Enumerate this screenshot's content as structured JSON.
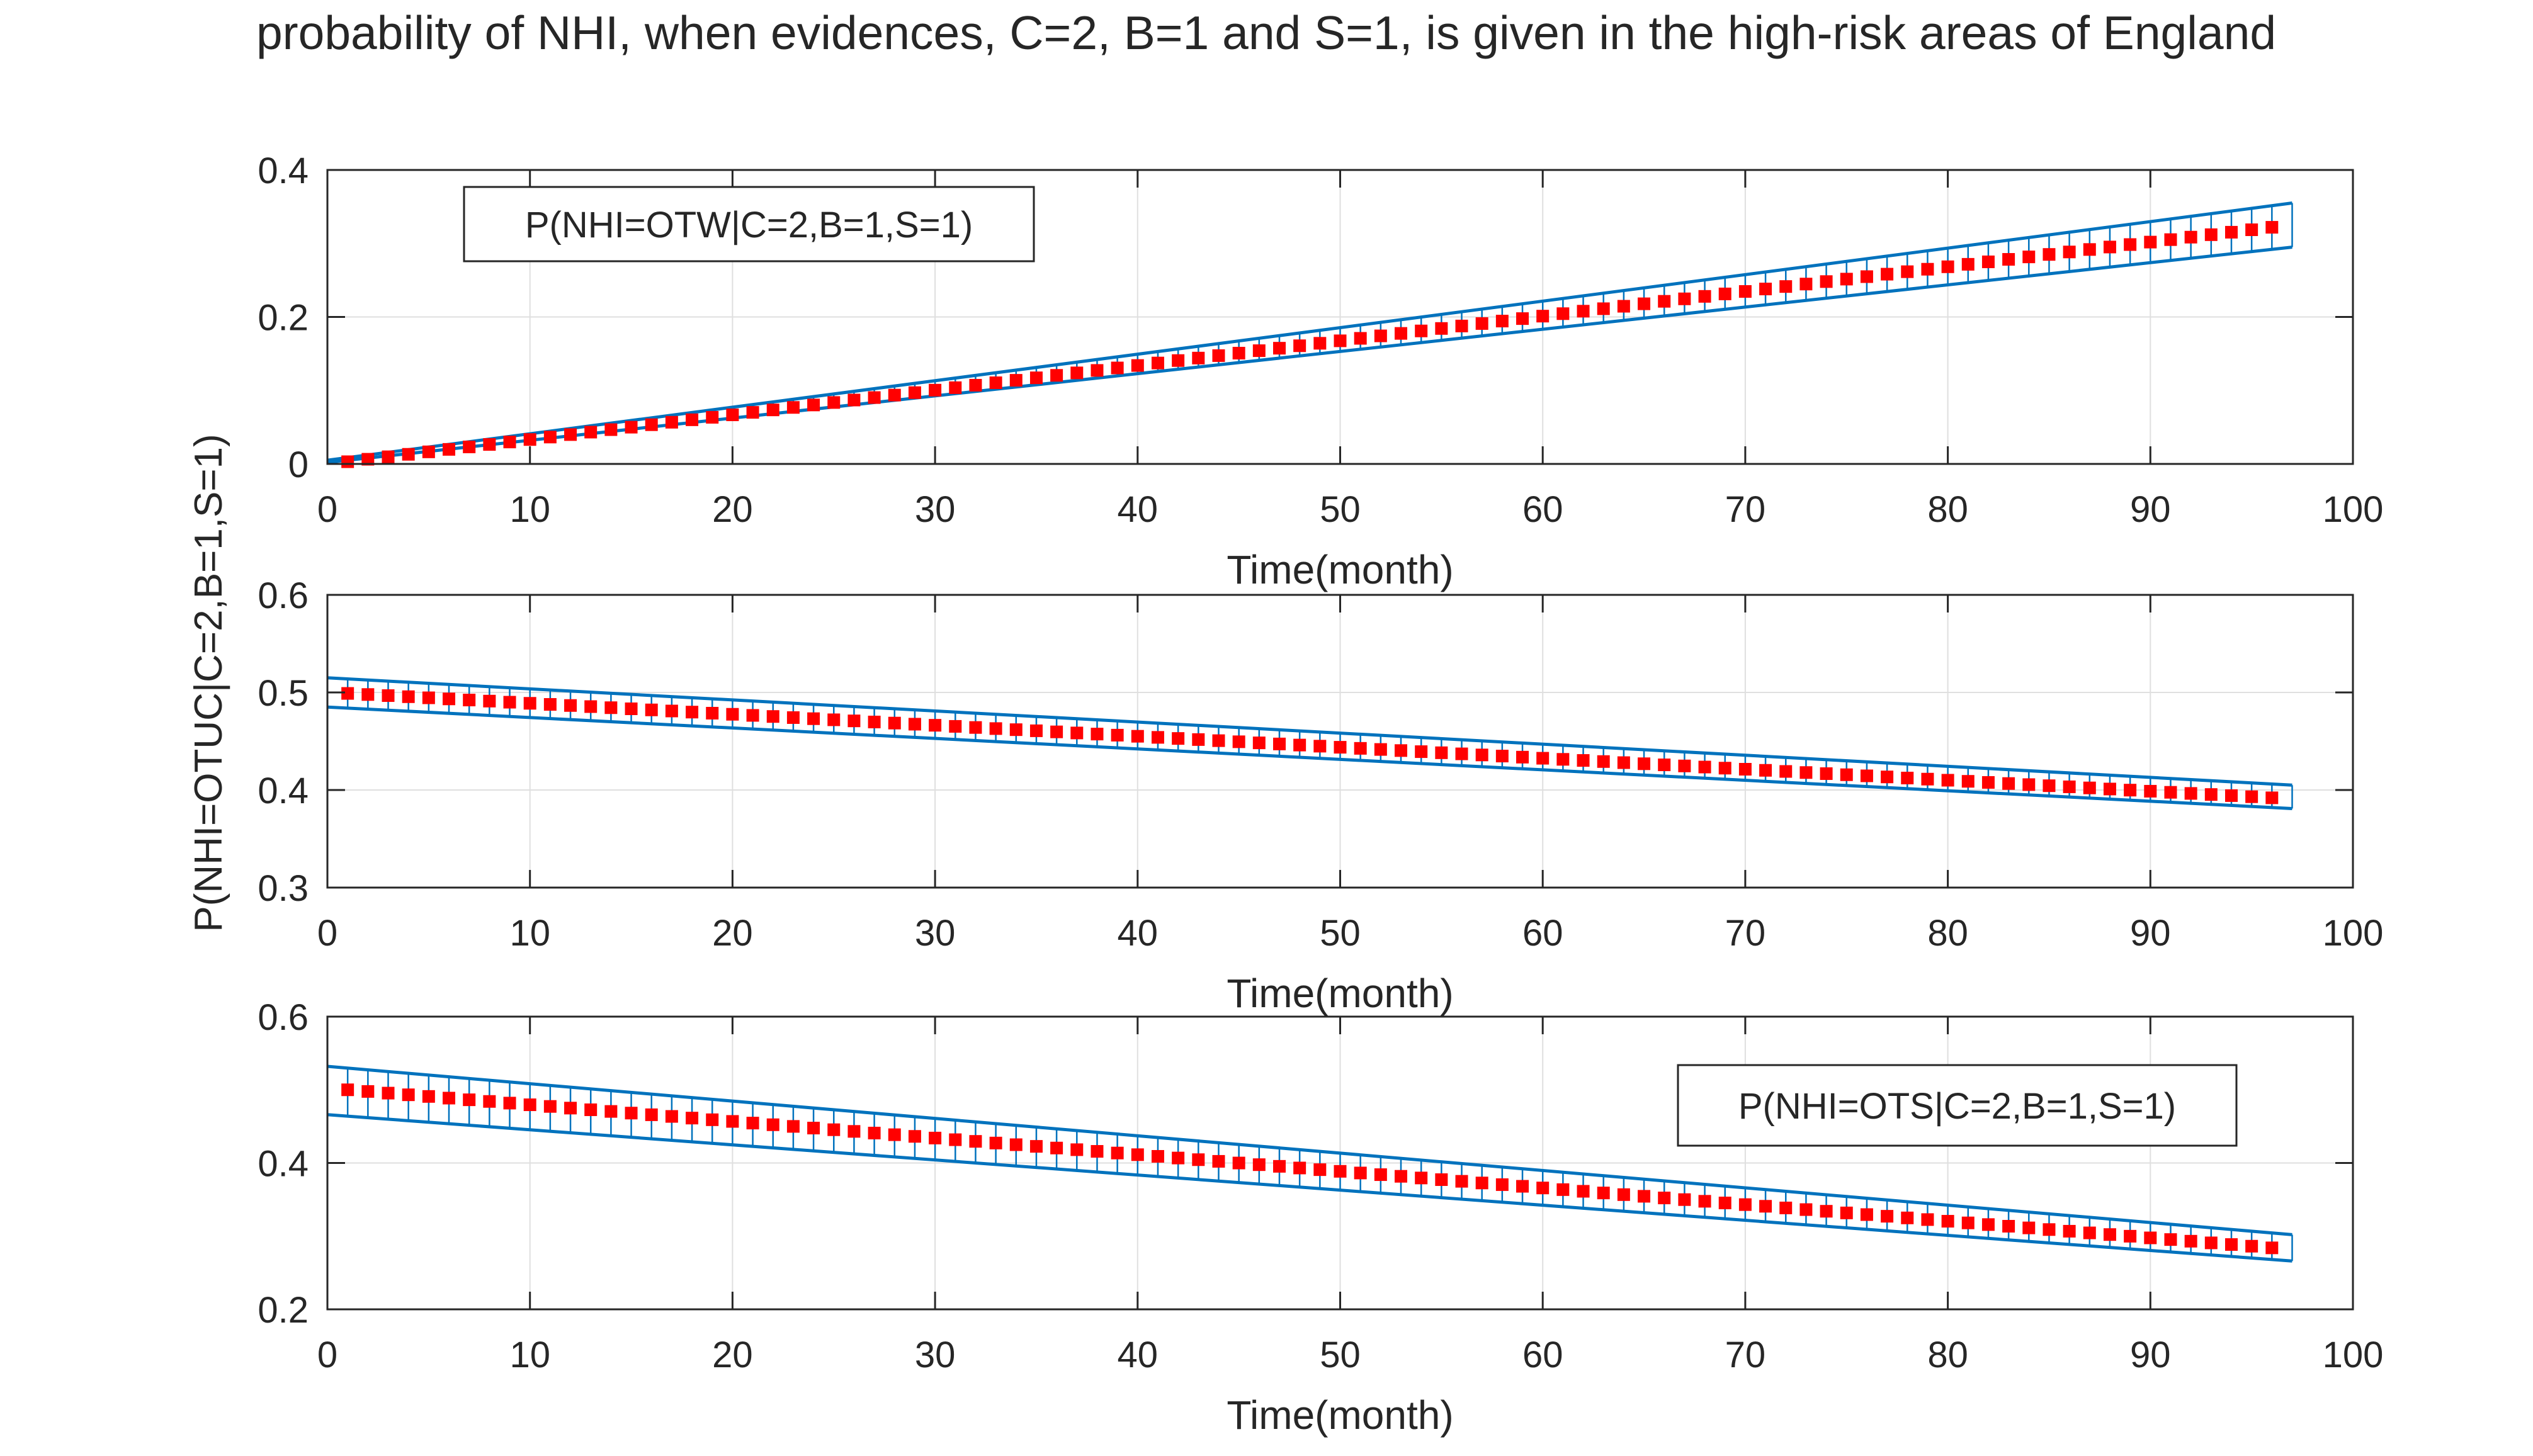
{
  "figure": {
    "title": "probability of NHI, when evidences, C=2, B=1 and S=1, is given in the high-risk areas of England",
    "shared_ylabel": "P(NHI=OTUC|C=2,B=1,S=1)"
  },
  "colors": {
    "marker": "#ff0000",
    "band": "#0072bd",
    "grid": "#dfdfdf",
    "axis": "#262626"
  },
  "chart_data": [
    {
      "type": "line",
      "title": "",
      "legend_label": "P(NHI=OTW|C=2,B=1,S=1)",
      "legend_position": "top-left",
      "xlabel": "Time(month)",
      "ylabel": "",
      "xlim": [
        0,
        100
      ],
      "ylim": [
        0,
        0.4
      ],
      "xticks": [
        0,
        10,
        20,
        30,
        40,
        50,
        60,
        70,
        80,
        90,
        100
      ],
      "yticks": [
        0,
        0.2,
        0.4
      ],
      "grid": true,
      "series": [
        {
          "name": "probability",
          "x_start": 1,
          "x_end": 96,
          "y_start": 0.003,
          "y_end": 0.322,
          "marker": "square",
          "color": "#ff0000"
        },
        {
          "name": "upper bound",
          "x_start": 0,
          "x_end": 97,
          "y_start": 0.005,
          "y_end": 0.355,
          "color": "#0072bd"
        },
        {
          "name": "lower bound",
          "x_start": 0,
          "x_end": 97,
          "y_start": 0.002,
          "y_end": 0.295,
          "color": "#0072bd"
        }
      ]
    },
    {
      "type": "line",
      "title": "",
      "legend_label": "",
      "xlabel": "Time(month)",
      "ylabel": "",
      "xlim": [
        0,
        100
      ],
      "ylim": [
        0.3,
        0.6
      ],
      "xticks": [
        0,
        10,
        20,
        30,
        40,
        50,
        60,
        70,
        80,
        90,
        100
      ],
      "yticks": [
        0.3,
        0.4,
        0.5,
        0.6
      ],
      "grid": true,
      "series": [
        {
          "name": "probability",
          "x_start": 1,
          "x_end": 96,
          "y_start": 0.499,
          "y_end": 0.392,
          "marker": "square",
          "color": "#ff0000"
        },
        {
          "name": "upper bound",
          "x_start": 0,
          "x_end": 97,
          "y_start": 0.515,
          "y_end": 0.405,
          "color": "#0072bd"
        },
        {
          "name": "lower bound",
          "x_start": 0,
          "x_end": 97,
          "y_start": 0.485,
          "y_end": 0.381,
          "color": "#0072bd"
        }
      ]
    },
    {
      "type": "line",
      "title": "",
      "legend_label": "P(NHI=OTS|C=2,B=1,S=1)",
      "legend_position": "top-right",
      "xlabel": "Time(month)",
      "ylabel": "",
      "xlim": [
        0,
        100
      ],
      "ylim": [
        0.2,
        0.6
      ],
      "xticks": [
        0,
        10,
        20,
        30,
        40,
        50,
        60,
        70,
        80,
        90,
        100
      ],
      "yticks": [
        0.2,
        0.4,
        0.6
      ],
      "grid": true,
      "series": [
        {
          "name": "probability",
          "x_start": 1,
          "x_end": 96,
          "y_start": 0.5,
          "y_end": 0.284,
          "marker": "square",
          "color": "#ff0000"
        },
        {
          "name": "upper bound",
          "x_start": 0,
          "x_end": 97,
          "y_start": 0.532,
          "y_end": 0.302,
          "color": "#0072bd"
        },
        {
          "name": "lower bound",
          "x_start": 0,
          "x_end": 97,
          "y_start": 0.466,
          "y_end": 0.266,
          "color": "#0072bd"
        }
      ]
    }
  ]
}
